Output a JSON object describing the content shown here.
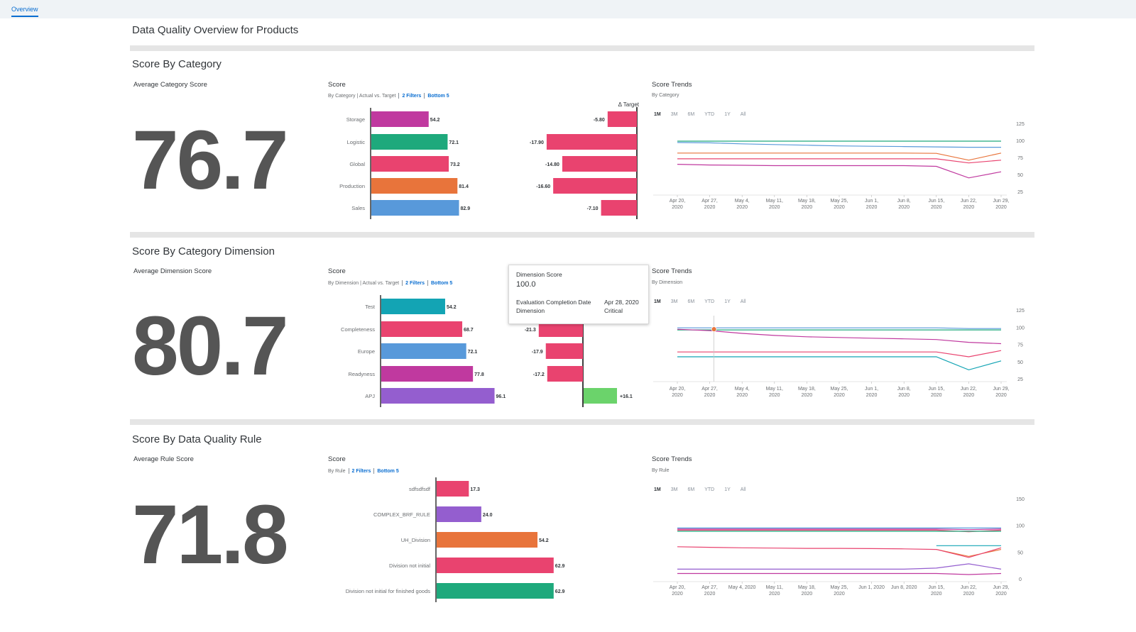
{
  "nav": {
    "tab": "Overview"
  },
  "page": {
    "title": "Data Quality Overview for Products"
  },
  "sections": [
    {
      "title": "Score By Category",
      "kpi_label": "Average Category Score",
      "kpi_value": "76.7",
      "score_title": "Score",
      "score_sub": "By Category | Actual vs. Target",
      "filters": "2 Filters",
      "bottom": "Bottom 5",
      "trend_title": "Score Trends",
      "trend_sub": "By Category"
    },
    {
      "title": "Score By Category Dimension",
      "kpi_label": "Average Dimension Score",
      "kpi_value": "80.7",
      "score_title": "Score",
      "score_sub": "By Dimension | Actual vs. Target",
      "filters": "2 Filters",
      "bottom": "Bottom 5",
      "trend_title": "Score Trends",
      "trend_sub": "By Dimension"
    },
    {
      "title": "Score By Data Quality Rule",
      "kpi_label": "Average Rule Score",
      "kpi_value": "71.8",
      "score_title": "Score",
      "score_sub": "By Rule",
      "filters": "2 Filters",
      "bottom": "Bottom 5",
      "trend_title": "Score Trends",
      "trend_sub": "By Rule"
    }
  ],
  "timeframes": [
    "1M",
    "3M",
    "6M",
    "YTD",
    "1Y",
    "All"
  ],
  "tooltip": {
    "title": "Dimension Score",
    "value": "100.0",
    "row1_key": "Evaluation Completion Date",
    "row1_value": "Apr 28, 2020",
    "row2_key": "Dimension",
    "row2_value": "Critical"
  },
  "colors": {
    "pink": "#c0399f",
    "green": "#1ea97c",
    "red": "#e9436f",
    "orange": "#e8743b",
    "blue": "#5899da",
    "teal": "#13a4b4",
    "purple": "#945ecf",
    "lightgreen": "#6bd36b"
  },
  "chart_data": [
    {
      "type": "bar",
      "title": "Score",
      "categories": [
        "Storage",
        "Logistic",
        "Global",
        "Production",
        "Sales"
      ],
      "values": [
        54.2,
        72.1,
        73.2,
        81.4,
        82.9
      ],
      "value_labels": [
        "54.2",
        "72.1",
        "73.2",
        "81.4",
        "82.9"
      ],
      "bar_colors": [
        "#c0399f",
        "#1ea97c",
        "#e9436f",
        "#e8743b",
        "#5899da"
      ],
      "xlim": [
        0,
        100
      ]
    },
    {
      "type": "bar",
      "title": "Δ Target",
      "categories": [
        "Storage",
        "Logistic",
        "Global",
        "Production",
        "Sales"
      ],
      "values": [
        -5.8,
        -17.9,
        -14.8,
        -16.6,
        -7.1
      ],
      "value_labels": [
        "-5.80",
        "-17.90",
        "-14.80",
        "-16.60",
        "-7.10"
      ],
      "xlim": [
        -20,
        0
      ]
    },
    {
      "type": "line",
      "title": "Score Trends",
      "x": [
        "Apr 20, 2020",
        "Apr 27, 2020",
        "May 4, 2020",
        "May 11, 2020",
        "May 18, 2020",
        "May 25, 2020",
        "Jun 1, 2020",
        "Jun 8, 2020",
        "Jun 15, 2020",
        "Jun 22, 2020",
        "Jun 29, 2020"
      ],
      "yticks": [
        "125",
        "100",
        "75",
        "50",
        "25"
      ],
      "ylim": [
        25,
        125
      ],
      "series": [
        {
          "color": "#5899da",
          "values": [
            97,
            96.5,
            95,
            94,
            93,
            92,
            91.5,
            91,
            90.5,
            90,
            90
          ]
        },
        {
          "color": "#1ea97c",
          "values": [
            99,
            99,
            99,
            99,
            99,
            99,
            99,
            99,
            99,
            99,
            99
          ]
        },
        {
          "color": "#e8743b",
          "values": [
            81.5,
            81.5,
            81.5,
            81.5,
            81.5,
            81.5,
            81.5,
            81.5,
            81,
            71,
            81.5
          ]
        },
        {
          "color": "#e9436f",
          "values": [
            73,
            73,
            73,
            73,
            73,
            73,
            73,
            73,
            73,
            67,
            71
          ]
        },
        {
          "color": "#c0399f",
          "values": [
            65,
            64,
            63.5,
            63,
            63,
            63,
            63,
            63,
            62,
            45,
            54
          ]
        }
      ]
    },
    {
      "type": "bar",
      "title": "Score",
      "categories": [
        "Test",
        "Completeness",
        "Europe",
        "Readyness",
        "APJ"
      ],
      "values": [
        54.2,
        68.7,
        72.1,
        77.8,
        96.1
      ],
      "value_labels": [
        "54.2",
        "68.7",
        "72.1",
        "77.8",
        "96.1"
      ],
      "bar_colors": [
        "#13a4b4",
        "#e9436f",
        "#5899da",
        "#c0399f",
        "#945ecf"
      ],
      "xlim": [
        0,
        100
      ]
    },
    {
      "type": "bar",
      "title": "Δ Target",
      "categories": [
        "Test",
        "Completeness",
        "Europe",
        "Readyness",
        "APJ"
      ],
      "values": [
        -10,
        -21.3,
        -17.9,
        -17.2,
        16.1
      ],
      "value_labels": [
        "",
        "-21.3",
        "-17.9",
        "-17.2",
        "+16.1"
      ],
      "xlim": [
        -25,
        20
      ]
    },
    {
      "type": "line",
      "title": "Score Trends",
      "x": [
        "Apr 20, 2020",
        "Apr 27, 2020",
        "May 4, 2020",
        "May 11, 2020",
        "May 18, 2020",
        "May 25, 2020",
        "Jun 1, 2020",
        "Jun 8, 2020",
        "Jun 15, 2020",
        "Jun 22, 2020",
        "Jun 29, 2020"
      ],
      "yticks": [
        "125",
        "100",
        "75",
        "50",
        "25"
      ],
      "ylim": [
        25,
        125
      ],
      "series": [
        {
          "color": "#5899da",
          "values": [
            99,
            99,
            99,
            99,
            99,
            99,
            99,
            99,
            99,
            98,
            98
          ]
        },
        {
          "color": "#1ea97c",
          "values": [
            96,
            96,
            96,
            96,
            96,
            96,
            96,
            96,
            96,
            96,
            96
          ]
        },
        {
          "color": "#c0399f",
          "values": [
            97,
            95,
            91,
            88,
            86,
            85,
            84,
            83,
            82,
            78,
            76
          ]
        },
        {
          "color": "#e9436f",
          "values": [
            64,
            64,
            64,
            64,
            64,
            64,
            64,
            64,
            64,
            57,
            66
          ]
        },
        {
          "color": "#13a4b4",
          "values": [
            57,
            57,
            57,
            57,
            57,
            57,
            57,
            57,
            57,
            38,
            51
          ]
        }
      ]
    },
    {
      "type": "bar",
      "title": "Score",
      "categories": [
        "sdfsdfsdf",
        "COMPLEX_BRF_RULE",
        "UH_Division",
        "Division not initial",
        "Division not initial for finished goods"
      ],
      "values": [
        17.3,
        24.0,
        54.2,
        62.9,
        62.9
      ],
      "value_labels": [
        "17.3",
        "24.0",
        "54.2",
        "62.9",
        "62.9"
      ],
      "bar_colors": [
        "#e9436f",
        "#945ecf",
        "#e8743b",
        "#e9436f",
        "#1ea97c"
      ],
      "xlim": [
        0,
        100
      ]
    },
    {
      "type": "line",
      "title": "Score Trends",
      "x": [
        "Apr 20, 2020",
        "Apr 27, 2020",
        "May 4, 2020",
        "May 11, 2020",
        "May 18, 2020",
        "May 25, 2020",
        "Jun 1, 2020",
        "Jun 8, 2020",
        "Jun 15, 2020",
        "Jun 22, 2020",
        "Jun 29, 2020"
      ],
      "yticks": [
        "150",
        "100",
        "50",
        "0"
      ],
      "ylim": [
        0,
        150
      ],
      "series": [
        {
          "color": "#5899da",
          "values": [
            95,
            95,
            95,
            95,
            95,
            95,
            95,
            95,
            95,
            95,
            95
          ]
        },
        {
          "color": "#c0399f",
          "values": [
            93,
            93,
            93,
            93,
            93,
            93,
            93,
            93,
            93,
            92,
            93
          ]
        },
        {
          "color": "#e9436f",
          "values": [
            91,
            91,
            91,
            91,
            91,
            91,
            91,
            91,
            91,
            88,
            91
          ]
        },
        {
          "color": "#1ea97c",
          "values": [
            89,
            89,
            89,
            89,
            89,
            89,
            89,
            89,
            89,
            89,
            89
          ]
        },
        {
          "color": "#13a4b4",
          "values": [
            null,
            null,
            null,
            null,
            null,
            null,
            null,
            null,
            62,
            62,
            62
          ]
        },
        {
          "color": "#e8743b",
          "values": [
            null,
            null,
            null,
            null,
            null,
            null,
            null,
            null,
            55,
            42,
            55
          ]
        },
        {
          "color": "#e9436f",
          "values": [
            60,
            59,
            58,
            57.5,
            57,
            57,
            56.5,
            56,
            55,
            40,
            58
          ]
        },
        {
          "color": "#945ecf",
          "values": [
            18,
            18,
            18,
            18,
            18,
            18,
            18,
            18,
            20,
            28,
            18
          ]
        },
        {
          "color": "#c0399f",
          "values": [
            10,
            10,
            10,
            10,
            10,
            10,
            10,
            10,
            10,
            8,
            10
          ]
        }
      ]
    }
  ]
}
